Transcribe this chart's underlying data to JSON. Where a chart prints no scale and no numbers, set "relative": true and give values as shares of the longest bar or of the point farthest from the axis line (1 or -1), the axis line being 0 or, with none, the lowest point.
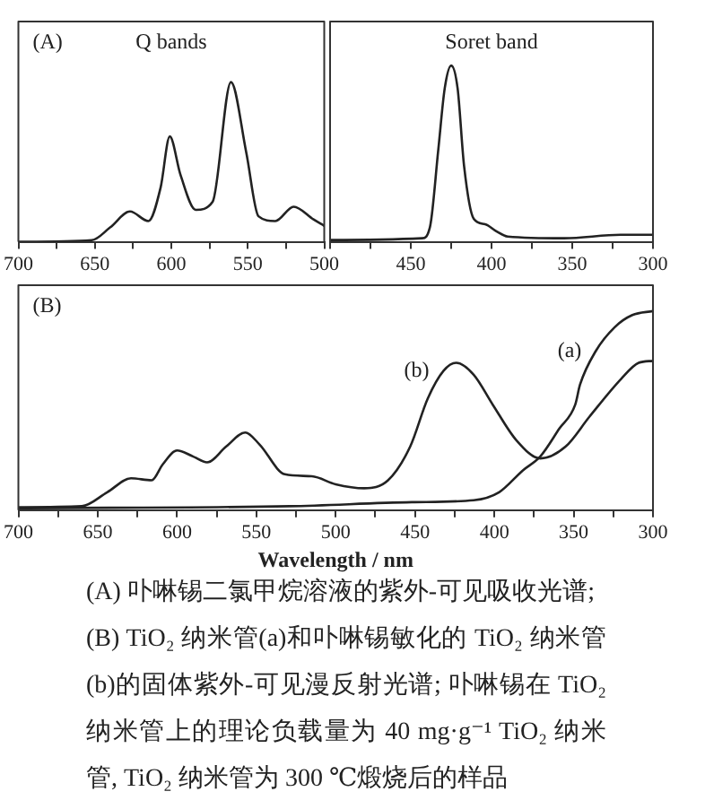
{
  "chart_data": [
    {
      "type": "line",
      "title": "Q bands",
      "annotations": [
        "(A)"
      ],
      "relative": true,
      "xlim": [
        700,
        500
      ],
      "xticks": [
        700,
        {
          "value": 675,
          "label": null
        },
        650,
        {
          "value": 625,
          "label": null
        },
        600,
        {
          "value": 575,
          "label": null
        },
        550,
        {
          "value": 525,
          "label": null
        },
        500
      ],
      "x": [
        700,
        652,
        640,
        627,
        615,
        607,
        601,
        594,
        584,
        573,
        561,
        551,
        543,
        532,
        520,
        507,
        500
      ],
      "series": [
        {
          "color": "#222222",
          "values": [
            0,
            0.01,
            0.09,
            0.19,
            0.13,
            0.34,
            0.66,
            0.42,
            0.2,
            0.25,
            1.0,
            0.56,
            0.16,
            0.13,
            0.22,
            0.14,
            0.1
          ]
        }
      ]
    },
    {
      "type": "line",
      "title": "Soret band",
      "relative": true,
      "xlim": [
        500,
        300
      ],
      "xticks": [
        {
          "value": 500,
          "label": null
        },
        {
          "value": 475,
          "label": null
        },
        450,
        {
          "value": 425,
          "label": null
        },
        400,
        {
          "value": 375,
          "label": null
        },
        350,
        {
          "value": 325,
          "label": null
        },
        300
      ],
      "x": [
        500,
        443,
        438,
        433,
        429,
        425,
        421,
        417,
        411,
        404,
        397,
        390,
        355,
        320,
        300
      ],
      "series": [
        {
          "color": "#222222",
          "values": [
            0.01,
            0.02,
            0.09,
            0.52,
            0.87,
            1.0,
            0.87,
            0.43,
            0.13,
            0.1,
            0.06,
            0.03,
            0.02,
            0.04,
            0.04
          ]
        }
      ]
    },
    {
      "type": "line",
      "xlabel": "Wavelength / nm",
      "annotations": [
        "(B)"
      ],
      "relative": true,
      "xlim": [
        700,
        300
      ],
      "xticks": [
        700,
        {
          "value": 675,
          "label": null
        },
        650,
        {
          "value": 625,
          "label": null
        },
        600,
        {
          "value": 575,
          "label": null
        },
        550,
        {
          "value": 525,
          "label": null
        },
        500,
        {
          "value": 475,
          "label": null
        },
        450,
        {
          "value": 425,
          "label": null
        },
        400,
        {
          "value": 375,
          "label": null
        },
        350,
        {
          "value": 325,
          "label": null
        },
        300
      ],
      "series": [
        {
          "name": "(a)",
          "color": "#222222",
          "x": [
            700,
            529,
            452,
            413,
            397,
            382,
            371,
            359,
            349,
            346,
            336,
            324,
            313,
            300
          ],
          "values": [
            0.01,
            0.02,
            0.04,
            0.05,
            0.09,
            0.2,
            0.27,
            0.41,
            0.53,
            0.63,
            0.8,
            0.92,
            0.98,
            1.0
          ]
        },
        {
          "name": "(b)",
          "color": "#222222",
          "x": [
            700,
            660,
            644,
            629,
            616,
            609,
            600,
            590,
            581,
            569,
            557,
            548,
            532,
            515,
            500,
            482,
            467,
            453,
            442,
            432,
            424,
            413,
            401,
            386,
            371,
            355,
            340,
            320,
            309,
            300
          ],
          "values": [
            0.015,
            0.02,
            0.09,
            0.16,
            0.15,
            0.23,
            0.3,
            0.27,
            0.24,
            0.32,
            0.39,
            0.33,
            0.18,
            0.17,
            0.13,
            0.11,
            0.15,
            0.32,
            0.56,
            0.7,
            0.74,
            0.68,
            0.53,
            0.35,
            0.26,
            0.32,
            0.47,
            0.66,
            0.74,
            0.75
          ]
        }
      ]
    },
    {
      "type": "other",
      "annotations": [
        "(A) 卟啉锡二氯甲烷溶液的紫外-可见吸收光谱;",
        "(B) TiO₂ 纳米管(a)和卟啉锡敏化的 TiO₂ 纳米管(b)的固体紫外-可见漫反射光谱; 卟啉锡在 TiO₂ 纳米管上的理论负载量为 40 mg·g⁻¹ TiO₂ 纳米管, TiO₂ 纳米管为 300 ℃煅烧后的样品"
      ]
    }
  ]
}
